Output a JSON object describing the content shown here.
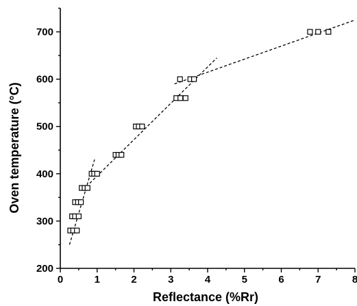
{
  "chart_data": {
    "type": "scatter",
    "xlabel": "Reflectance (%Rr)",
    "ylabel": "Oven temperature (°C)",
    "xlim": [
      0,
      8
    ],
    "ylim": [
      200,
      750
    ],
    "x_ticks": [
      0,
      1,
      2,
      3,
      4,
      5,
      6,
      7,
      8
    ],
    "y_ticks": [
      200,
      300,
      400,
      500,
      600,
      700
    ],
    "x_tick_labels": [
      "0",
      "1",
      "2",
      "3",
      "4",
      "5",
      "6",
      "7",
      "8"
    ],
    "y_tick_labels": [
      "200",
      "300",
      "400",
      "500",
      "600",
      "700"
    ],
    "grid": false,
    "legend": "none",
    "marker": "open-square",
    "points": [
      {
        "x": 0.27,
        "y": 280
      },
      {
        "x": 0.35,
        "y": 280
      },
      {
        "x": 0.45,
        "y": 280
      },
      {
        "x": 0.32,
        "y": 310
      },
      {
        "x": 0.4,
        "y": 310
      },
      {
        "x": 0.5,
        "y": 310
      },
      {
        "x": 0.4,
        "y": 340
      },
      {
        "x": 0.48,
        "y": 340
      },
      {
        "x": 0.56,
        "y": 340
      },
      {
        "x": 0.58,
        "y": 370
      },
      {
        "x": 0.66,
        "y": 370
      },
      {
        "x": 0.74,
        "y": 370
      },
      {
        "x": 0.85,
        "y": 400
      },
      {
        "x": 0.92,
        "y": 400
      },
      {
        "x": 1.0,
        "y": 400
      },
      {
        "x": 1.5,
        "y": 440
      },
      {
        "x": 1.58,
        "y": 440
      },
      {
        "x": 1.66,
        "y": 440
      },
      {
        "x": 2.05,
        "y": 500
      },
      {
        "x": 2.13,
        "y": 500
      },
      {
        "x": 2.22,
        "y": 500
      },
      {
        "x": 3.15,
        "y": 560
      },
      {
        "x": 3.26,
        "y": 560
      },
      {
        "x": 3.4,
        "y": 560
      },
      {
        "x": 3.25,
        "y": 600
      },
      {
        "x": 3.53,
        "y": 600
      },
      {
        "x": 3.63,
        "y": 600
      },
      {
        "x": 6.78,
        "y": 700
      },
      {
        "x": 7.0,
        "y": 700
      },
      {
        "x": 7.28,
        "y": 700
      }
    ],
    "trend_lines": [
      {
        "x": [
          0.25,
          0.93
        ],
        "y": [
          250,
          430
        ]
      },
      {
        "x": [
          0.8,
          4.25
        ],
        "y": [
          380,
          645
        ]
      },
      {
        "x": [
          3.1,
          8.0
        ],
        "y": [
          590,
          725
        ]
      }
    ]
  }
}
